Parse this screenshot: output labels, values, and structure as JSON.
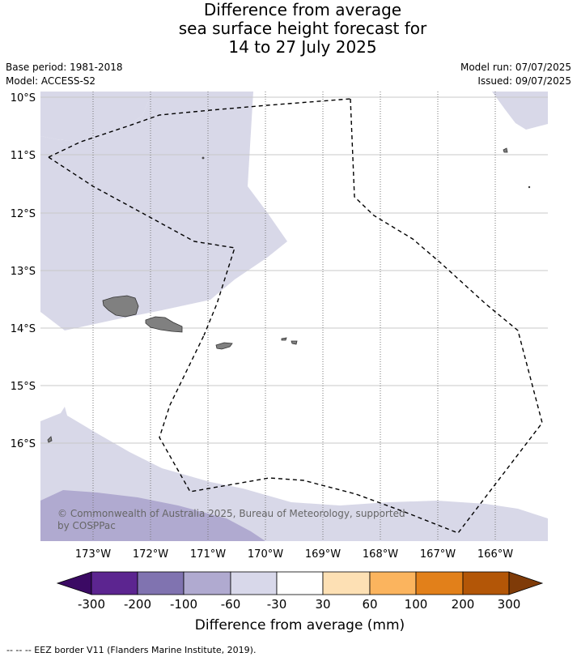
{
  "title": {
    "line1": "Difference from average",
    "line2": "sea surface height forecast for",
    "line3": "14 to 27 July 2025"
  },
  "meta": {
    "base_period": "Base period: 1981-2018",
    "model": "Model: ACCESS-S2",
    "model_run": "Model run: 07/07/2025",
    "issued": "Issued: 09/07/2025"
  },
  "map": {
    "lat_labels": [
      "10°S",
      "11°S",
      "12°S",
      "13°S",
      "14°S",
      "15°S",
      "16°S"
    ],
    "lon_labels": [
      "173°W",
      "172°W",
      "171°W",
      "170°W",
      "169°W",
      "168°W",
      "167°W",
      "166°W"
    ],
    "copyright": "© Commonwealth of Australia 2025, Bureau of Meteorology, supported by COSPPac",
    "colors": {
      "light_purple": "#d8d8e8",
      "mid_purple": "#b0aad0",
      "land": "#808080"
    }
  },
  "colorbar": {
    "title": "Difference from average (mm)",
    "ticks": [
      "-300",
      "-200",
      "-100",
      "-60",
      "-30",
      "30",
      "60",
      "100",
      "200",
      "300"
    ],
    "colors": [
      "#3b0a64",
      "#5c2590",
      "#8073b0",
      "#b0aad0",
      "#d8d8ea",
      "#ffffff",
      "#fde0b4",
      "#fbb45e",
      "#e2801a",
      "#b35607",
      "#7f3b08"
    ]
  },
  "footer": "-- -- -- EEZ border V11 (Flanders Marine Institute, 2019)."
}
